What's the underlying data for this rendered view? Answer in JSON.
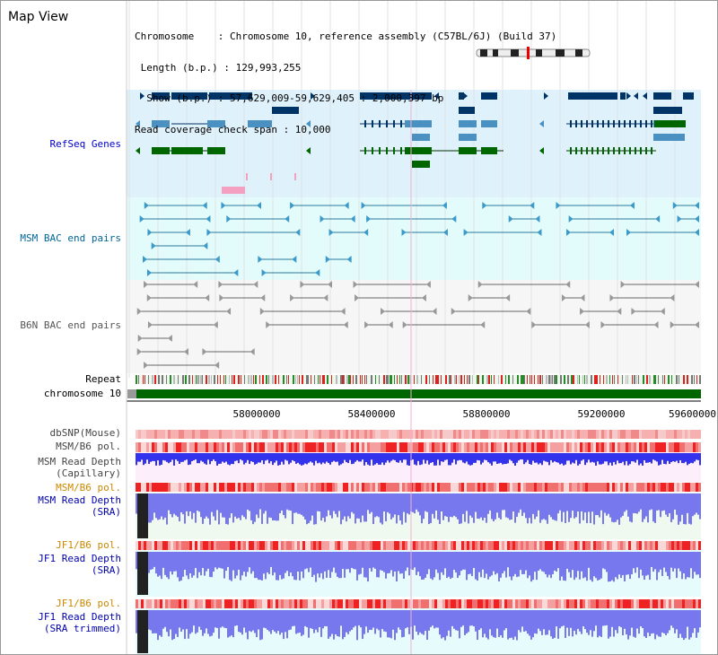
{
  "view_title": "Map View",
  "info": {
    "chromosome": "Chromosome    : Chromosome 10, reference assembly (C57BL/6J) (Build 37)",
    "length": " Length (b.p.) : 129,993,255",
    "show": "  Show (b.p.) : 57,629,009-59,629,405 : 2,000,397 bp",
    "coverage": "Read coverage check span : 10,000"
  },
  "tracks": {
    "refseq": "RefSeq Genes",
    "msm_bac": "MSM BAC end pairs",
    "b6n_bac": "B6N BAC end pairs",
    "repeat": "Repeat",
    "chrom": "chromosome 10",
    "dbsnp": "dbSNP(Mouse)",
    "msm_pol1": "MSM/B6 pol.",
    "msm_depth_cap_1": "MSM Read Depth",
    "msm_depth_cap_2": "(Capillary)",
    "msm_pol2": "MSM/B6 pol.",
    "msm_depth_sra_1": "MSM Read Depth",
    "msm_depth_sra_2": "(SRA)",
    "jf1_pol1": "JF1/B6 pol.",
    "jf1_depth_sra_1": "JF1 Read Depth",
    "jf1_depth_sra_2": "(SRA)",
    "jf1_pol2": "JF1/B6 pol.",
    "jf1_depth_trim_1": "JF1 Read Depth",
    "jf1_depth_trim_2": "(SRA trimmed)"
  },
  "axis": {
    "ticks": [
      "58000000",
      "58400000",
      "58800000",
      "59200000",
      "59600000"
    ]
  },
  "colors": {
    "refseq_label": "#0000cc",
    "msm_bac_label": "#006699",
    "b6n_label": "#555555",
    "pol_label": "#cc8800",
    "depth_label": "#0000aa",
    "gene_dark": "#003366",
    "gene_mid": "#4a90c0",
    "gene_green": "#006600",
    "chrom_band": "#006600",
    "depth_bar": "#3333ee",
    "depth_bar_light": "#7777ee",
    "pol_red": "#ee3333",
    "pol_pink": "#f5aaaa"
  }
}
